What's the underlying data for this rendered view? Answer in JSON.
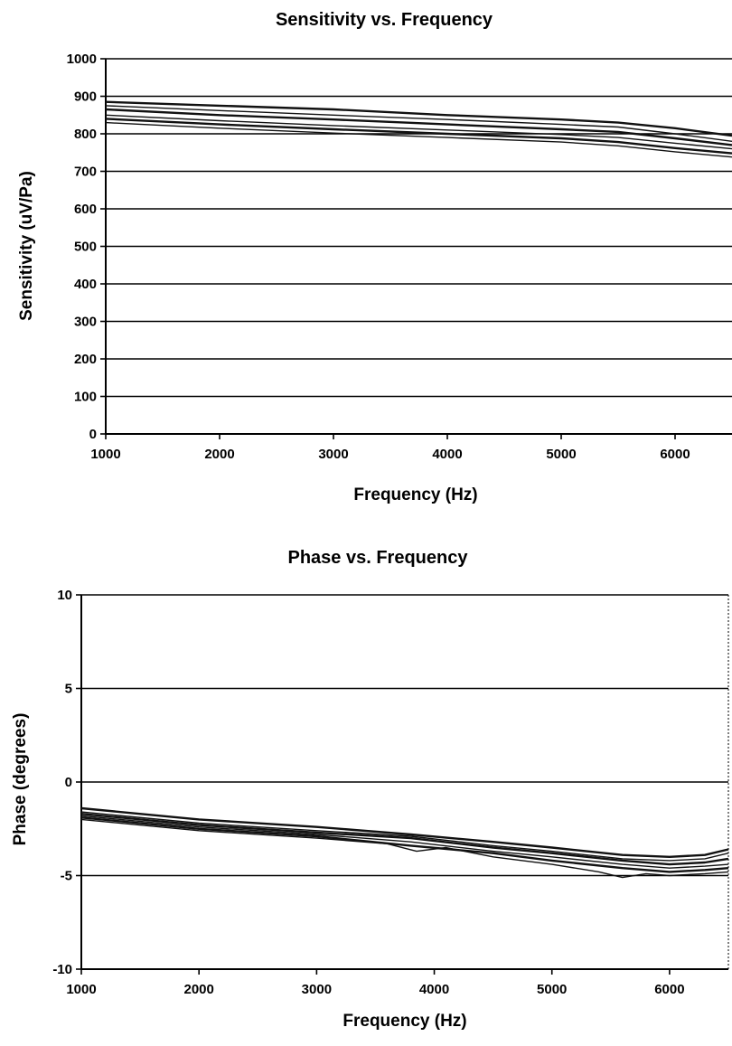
{
  "chart_data": [
    {
      "type": "line",
      "title": "Sensitivity vs. Frequency",
      "xlabel": "Frequency (Hz)",
      "ylabel": "Sensitivity (uV/Pa)",
      "xlim": [
        1000,
        6500
      ],
      "ylim": [
        0,
        1000
      ],
      "x_ticks": [
        "1000",
        "2000",
        "3000",
        "4000",
        "5000",
        "6000"
      ],
      "y_ticks": [
        "1000",
        "900",
        "800",
        "700",
        "600",
        "500",
        "400",
        "300",
        "200",
        "100",
        "0"
      ],
      "grid": true,
      "legend": "none",
      "series": [
        {
          "x": [
            1000,
            2000,
            3000,
            4000,
            5000,
            5500,
            6000,
            6500
          ],
          "values": [
            885,
            875,
            865,
            850,
            838,
            830,
            815,
            795
          ]
        },
        {
          "x": [
            1000,
            2000,
            3000,
            4000,
            5000,
            5500,
            6000,
            6500
          ],
          "values": [
            875,
            862,
            850,
            838,
            825,
            818,
            800,
            780
          ]
        },
        {
          "x": [
            1000,
            2000,
            3000,
            4000,
            5000,
            5500,
            6000,
            6500
          ],
          "values": [
            865,
            850,
            838,
            825,
            812,
            805,
            788,
            770
          ]
        },
        {
          "x": [
            1000,
            2000,
            3000,
            4000,
            5000,
            5500,
            6000,
            6500
          ],
          "values": [
            850,
            835,
            822,
            810,
            798,
            790,
            775,
            760
          ]
        },
        {
          "x": [
            1000,
            2000,
            3000,
            4000,
            5000,
            5500,
            6000,
            6500
          ],
          "values": [
            840,
            825,
            812,
            800,
            788,
            778,
            762,
            748
          ]
        },
        {
          "x": [
            1000,
            2000,
            3000,
            4000,
            5000,
            5500,
            6000,
            6500
          ],
          "values": [
            830,
            815,
            802,
            790,
            778,
            768,
            752,
            738
          ]
        }
      ]
    },
    {
      "type": "line",
      "title": "Phase vs. Frequency",
      "xlabel": "Frequency (Hz)",
      "ylabel": "Phase (degrees)",
      "xlim": [
        1000,
        6500
      ],
      "ylim": [
        -10,
        10
      ],
      "x_ticks": [
        "1000",
        "2000",
        "3000",
        "4000",
        "5000",
        "6000"
      ],
      "y_ticks": [
        "10",
        "5",
        "0",
        "-5",
        "-10"
      ],
      "grid": true,
      "legend": "none",
      "series": [
        {
          "x": [
            1000,
            2000,
            3000,
            3800,
            4500,
            5000,
            5600,
            6000,
            6300,
            6500
          ],
          "values": [
            -1.4,
            -2.0,
            -2.4,
            -2.8,
            -3.2,
            -3.5,
            -3.9,
            -4.0,
            -3.9,
            -3.6
          ]
        },
        {
          "x": [
            1000,
            2000,
            3000,
            3800,
            4500,
            5000,
            5600,
            6000,
            6300,
            6500
          ],
          "values": [
            -1.6,
            -2.2,
            -2.6,
            -2.9,
            -3.4,
            -3.7,
            -4.1,
            -4.2,
            -4.1,
            -3.8
          ]
        },
        {
          "x": [
            1000,
            2000,
            3000,
            3800,
            4500,
            5000,
            5600,
            6000,
            6300,
            6500
          ],
          "values": [
            -1.7,
            -2.3,
            -2.7,
            -3.0,
            -3.5,
            -3.8,
            -4.2,
            -4.4,
            -4.3,
            -4.1
          ]
        },
        {
          "x": [
            1000,
            2000,
            3000,
            3800,
            4500,
            5000,
            5600,
            6000,
            6300,
            6500
          ],
          "values": [
            -1.8,
            -2.4,
            -2.8,
            -3.2,
            -3.7,
            -4.0,
            -4.4,
            -4.6,
            -4.5,
            -4.4
          ]
        },
        {
          "x": [
            1000,
            2000,
            3000,
            3800,
            4500,
            5000,
            5600,
            6000,
            6300,
            6500
          ],
          "values": [
            -1.9,
            -2.5,
            -2.9,
            -3.4,
            -3.8,
            -4.2,
            -4.6,
            -4.8,
            -4.7,
            -4.6
          ]
        },
        {
          "x": [
            1000,
            2000,
            3000,
            3600,
            3850,
            4100,
            4500,
            5000,
            5400,
            5600,
            5800,
            6000,
            6300,
            6500
          ],
          "values": [
            -2.0,
            -2.6,
            -3.0,
            -3.3,
            -3.7,
            -3.5,
            -4.0,
            -4.4,
            -4.8,
            -5.1,
            -4.9,
            -5.0,
            -4.9,
            -4.8
          ]
        }
      ]
    }
  ]
}
